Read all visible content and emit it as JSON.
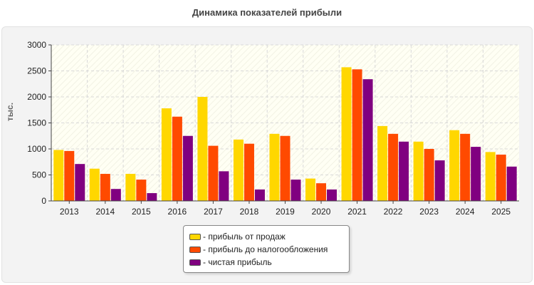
{
  "chart_data": {
    "type": "bar",
    "title": "Динамика показателей прибыли",
    "ylabel": "тыс.",
    "xlabel": "",
    "categories": [
      "2013",
      "2014",
      "2015",
      "2016",
      "2017",
      "2018",
      "2019",
      "2020",
      "2021",
      "2022",
      "2023",
      "2024",
      "2025"
    ],
    "ylim": [
      0,
      3000
    ],
    "yticks": [
      0,
      500,
      1000,
      1500,
      2000,
      2500,
      3000
    ],
    "grid": true,
    "legend_position": "bottom-center",
    "series": [
      {
        "name": "- прибыль от продаж",
        "color": "#FFD700",
        "values": [
          980,
          620,
          520,
          1780,
          2000,
          1180,
          1290,
          430,
          2570,
          1440,
          1140,
          1360,
          940
        ]
      },
      {
        "name": "- прибыль до налогообложения",
        "color": "#FF4A00",
        "values": [
          960,
          520,
          410,
          1620,
          1060,
          1100,
          1250,
          340,
          2530,
          1290,
          1000,
          1290,
          890
        ]
      },
      {
        "name": "- чистая прибыль",
        "color": "#800080",
        "values": [
          710,
          230,
          150,
          1250,
          570,
          220,
          410,
          220,
          2340,
          1140,
          780,
          1040,
          660
        ]
      }
    ]
  }
}
